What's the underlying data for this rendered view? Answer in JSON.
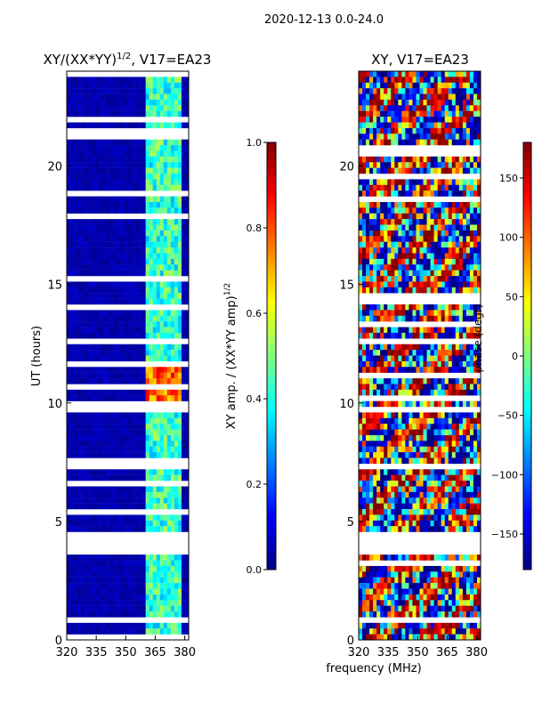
{
  "suptitle": "2020-12-13 0.0-24.0",
  "chart_data": [
    {
      "type": "heatmap",
      "title_main": "XY/(XX*YY)",
      "title_sup": "1/2",
      "title_tail": ", V17=EA23",
      "ylabel": "UT (hours)",
      "xlim": [
        320,
        382
      ],
      "ylim": [
        0,
        24
      ],
      "xticks": [
        320,
        335,
        350,
        365,
        380
      ],
      "yticks": [
        0,
        5,
        10,
        15,
        20
      ],
      "colorbar": {
        "label_main": "XY amp. / (XX*YY amp)",
        "label_sup": "1/2",
        "range": [
          0.0,
          1.0
        ],
        "ticks": [
          "0.0",
          "0.2",
          "0.4",
          "0.6",
          "0.8",
          "1.0"
        ],
        "tick_values": [
          0.0,
          0.2,
          0.4,
          0.6,
          0.8,
          1.0
        ],
        "colormap": "jet"
      }
    },
    {
      "type": "heatmap",
      "title": "XY, V17=EA23",
      "ylabel": "",
      "xlim": [
        320,
        382
      ],
      "ylim": [
        0,
        24
      ],
      "xticks": [
        320,
        335,
        350,
        365,
        380
      ],
      "yticks": [
        0,
        5,
        10,
        15,
        20
      ],
      "colorbar": {
        "label": "phase (degr)",
        "range": [
          -180,
          180
        ],
        "ticks": [
          "−150",
          "−100",
          "−50",
          "0",
          "50",
          "100",
          "150"
        ],
        "tick_values": [
          -150,
          -100,
          -50,
          0,
          50,
          100,
          150
        ],
        "colormap": "jet"
      }
    }
  ],
  "xlabel": "frequency (MHz)",
  "gap_hours": [
    [
      3.65,
      4.65
    ],
    [
      12.45,
      12.7
    ],
    [
      7.1,
      7.45
    ]
  ]
}
